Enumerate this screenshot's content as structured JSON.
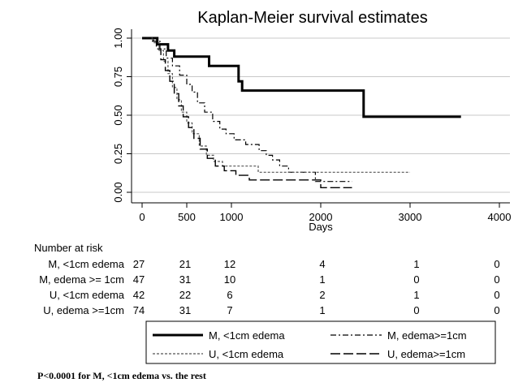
{
  "chart_data": {
    "type": "line",
    "title": "Kaplan-Meier survival estimates",
    "xlabel": "Days",
    "ylabel": "",
    "xlim": [
      0,
      4000
    ],
    "ylim": [
      0,
      1
    ],
    "xticks": [
      "0",
      "500",
      "1000",
      "2000",
      "3000",
      "4000"
    ],
    "xtick_values": [
      0,
      500,
      1000,
      2000,
      3000,
      4000
    ],
    "yticks": [
      "0.00",
      "0.25",
      "0.50",
      "0.75",
      "1.00"
    ],
    "ytick_values": [
      0,
      0.25,
      0.5,
      0.75,
      1
    ],
    "grid": "horizontal",
    "series": [
      {
        "name": "M, <1cm edema",
        "style": "solid-thick",
        "color": "#000000",
        "points": [
          [
            0,
            1
          ],
          [
            170,
            1
          ],
          [
            170,
            0.96
          ],
          [
            290,
            0.96
          ],
          [
            290,
            0.92
          ],
          [
            360,
            0.92
          ],
          [
            360,
            0.88
          ],
          [
            750,
            0.88
          ],
          [
            750,
            0.82
          ],
          [
            1080,
            0.82
          ],
          [
            1080,
            0.72
          ],
          [
            1120,
            0.72
          ],
          [
            1120,
            0.66
          ],
          [
            2480,
            0.66
          ],
          [
            2480,
            0.49
          ],
          [
            3570,
            0.49
          ]
        ]
      },
      {
        "name": "M, edema>=1cm",
        "style": "dash-dot",
        "color": "#000000",
        "points": [
          [
            0,
            1
          ],
          [
            120,
            1
          ],
          [
            120,
            0.98
          ],
          [
            200,
            0.98
          ],
          [
            200,
            0.93
          ],
          [
            270,
            0.93
          ],
          [
            270,
            0.87
          ],
          [
            340,
            0.87
          ],
          [
            340,
            0.82
          ],
          [
            420,
            0.82
          ],
          [
            420,
            0.76
          ],
          [
            500,
            0.76
          ],
          [
            500,
            0.7
          ],
          [
            560,
            0.7
          ],
          [
            560,
            0.65
          ],
          [
            620,
            0.65
          ],
          [
            620,
            0.58
          ],
          [
            700,
            0.58
          ],
          [
            700,
            0.52
          ],
          [
            790,
            0.52
          ],
          [
            790,
            0.46
          ],
          [
            870,
            0.46
          ],
          [
            870,
            0.41
          ],
          [
            940,
            0.41
          ],
          [
            940,
            0.38
          ],
          [
            1030,
            0.38
          ],
          [
            1030,
            0.34
          ],
          [
            1160,
            0.34
          ],
          [
            1160,
            0.31
          ],
          [
            1310,
            0.31
          ],
          [
            1310,
            0.27
          ],
          [
            1390,
            0.27
          ],
          [
            1390,
            0.24
          ],
          [
            1460,
            0.24
          ],
          [
            1460,
            0.21
          ],
          [
            1540,
            0.21
          ],
          [
            1540,
            0.17
          ],
          [
            1640,
            0.17
          ],
          [
            1640,
            0.13
          ],
          [
            1940,
            0.13
          ],
          [
            1940,
            0.07
          ],
          [
            2350,
            0.07
          ]
        ]
      },
      {
        "name": "U,  <1cm edema",
        "style": "dotted",
        "color": "#555555",
        "points": [
          [
            0,
            1
          ],
          [
            130,
            1
          ],
          [
            130,
            0.97
          ],
          [
            190,
            0.97
          ],
          [
            190,
            0.92
          ],
          [
            240,
            0.92
          ],
          [
            240,
            0.85
          ],
          [
            290,
            0.85
          ],
          [
            290,
            0.77
          ],
          [
            340,
            0.77
          ],
          [
            340,
            0.68
          ],
          [
            390,
            0.68
          ],
          [
            390,
            0.6
          ],
          [
            440,
            0.6
          ],
          [
            440,
            0.52
          ],
          [
            500,
            0.52
          ],
          [
            500,
            0.45
          ],
          [
            560,
            0.45
          ],
          [
            560,
            0.38
          ],
          [
            640,
            0.38
          ],
          [
            640,
            0.3
          ],
          [
            720,
            0.3
          ],
          [
            720,
            0.24
          ],
          [
            800,
            0.24
          ],
          [
            800,
            0.2
          ],
          [
            900,
            0.2
          ],
          [
            900,
            0.17
          ],
          [
            1300,
            0.17
          ],
          [
            1300,
            0.13
          ],
          [
            3000,
            0.13
          ]
        ]
      },
      {
        "name": "U, edema>=1cm",
        "style": "long-dash",
        "color": "#000000",
        "points": [
          [
            0,
            1
          ],
          [
            100,
            1
          ],
          [
            100,
            0.98
          ],
          [
            160,
            0.98
          ],
          [
            160,
            0.93
          ],
          [
            210,
            0.93
          ],
          [
            210,
            0.86
          ],
          [
            260,
            0.86
          ],
          [
            260,
            0.79
          ],
          [
            310,
            0.79
          ],
          [
            310,
            0.72
          ],
          [
            360,
            0.72
          ],
          [
            360,
            0.64
          ],
          [
            410,
            0.64
          ],
          [
            410,
            0.56
          ],
          [
            460,
            0.56
          ],
          [
            460,
            0.49
          ],
          [
            520,
            0.49
          ],
          [
            520,
            0.42
          ],
          [
            580,
            0.42
          ],
          [
            580,
            0.35
          ],
          [
            650,
            0.35
          ],
          [
            650,
            0.28
          ],
          [
            730,
            0.28
          ],
          [
            730,
            0.22
          ],
          [
            820,
            0.22
          ],
          [
            820,
            0.17
          ],
          [
            920,
            0.17
          ],
          [
            920,
            0.14
          ],
          [
            1050,
            0.14
          ],
          [
            1050,
            0.11
          ],
          [
            1200,
            0.11
          ],
          [
            1200,
            0.08
          ],
          [
            2000,
            0.08
          ],
          [
            2000,
            0.03
          ],
          [
            2350,
            0.03
          ]
        ]
      }
    ]
  },
  "risk_table": {
    "header": "Number at risk",
    "rows": [
      {
        "label": "M, <1cm edema",
        "values": [
          "27",
          "21",
          "12",
          "4",
          "1",
          "0"
        ]
      },
      {
        "label": "M, edema >= 1cm",
        "values": [
          "47",
          "31",
          "10",
          "1",
          "0",
          "0"
        ]
      },
      {
        "label": "U, <1cm edema",
        "values": [
          "42",
          "22",
          "6",
          "2",
          "1",
          "0"
        ]
      },
      {
        "label": "U, edema >=1cm",
        "values": [
          "74",
          "31",
          "7",
          "1",
          "0",
          "0"
        ]
      }
    ]
  },
  "footnote": "P<0.0001 for M, <1cm edema vs. the rest"
}
